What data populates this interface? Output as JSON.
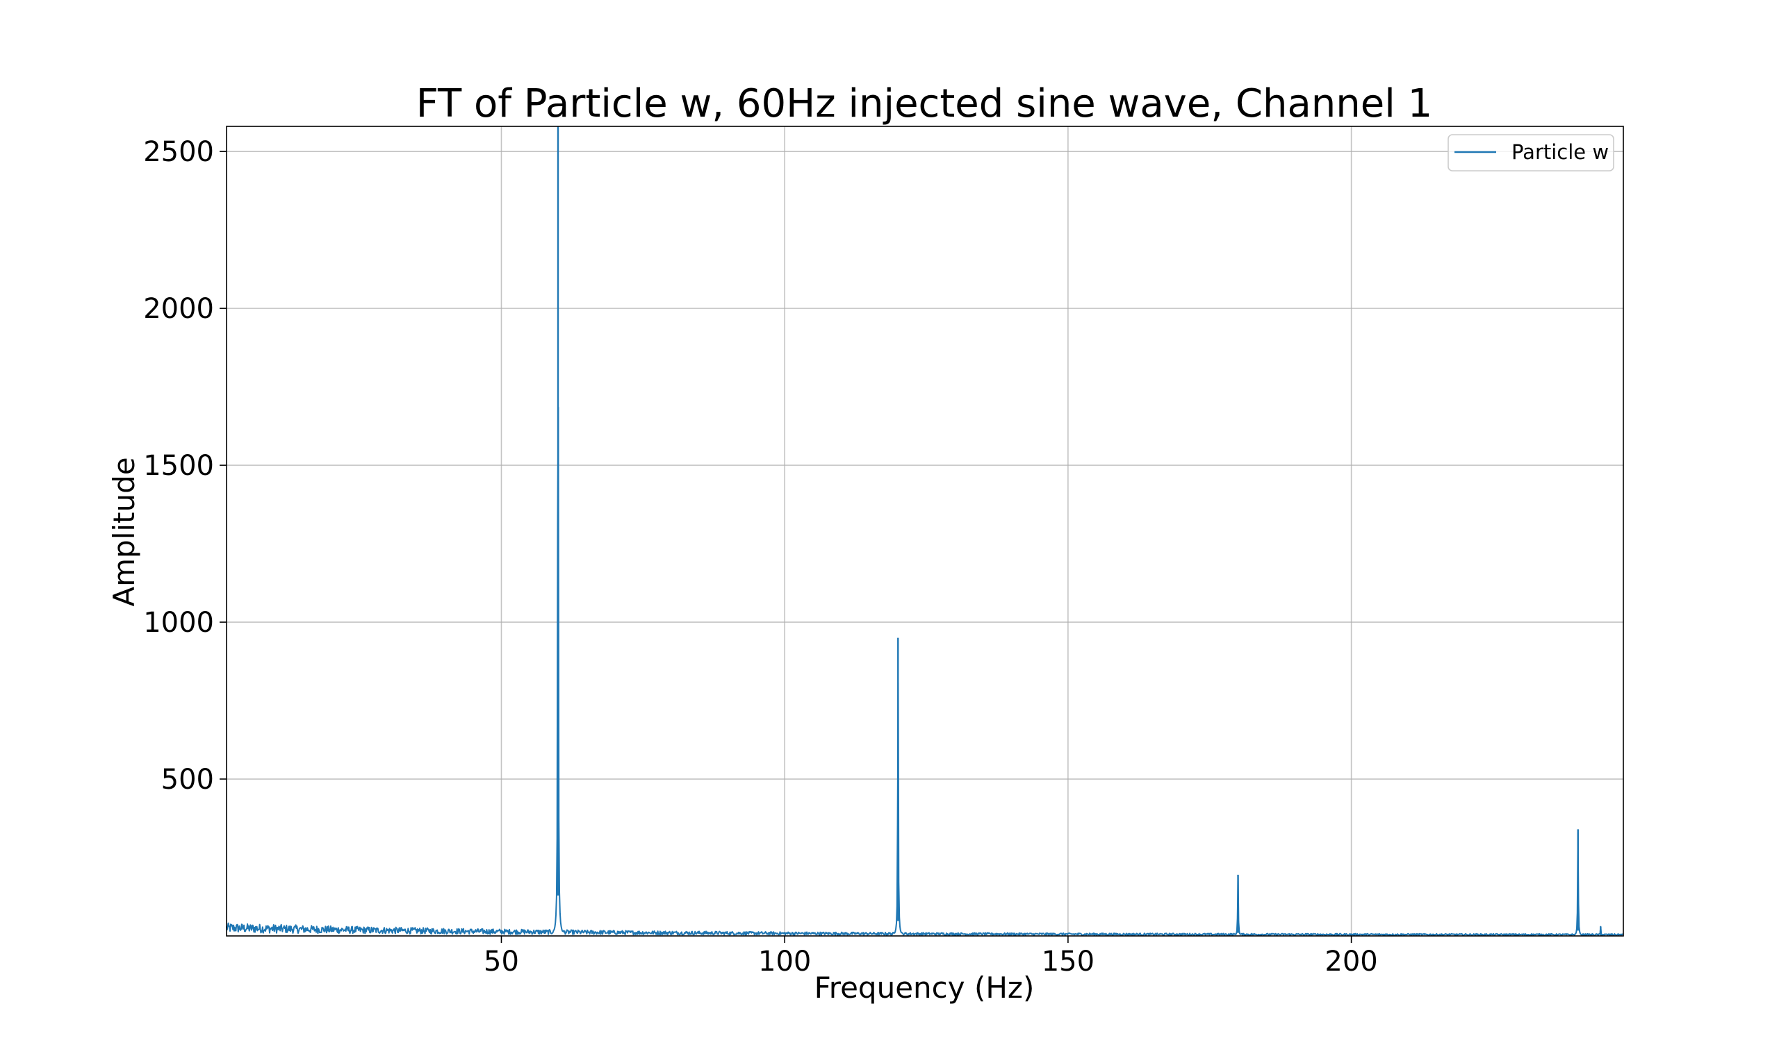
{
  "chart_data": {
    "type": "line",
    "title": "FT of Particle w, 60Hz injected sine wave, Channel 1",
    "xlabel": "Frequency (Hz)",
    "ylabel": "Amplitude",
    "xlim": [
      1.5,
      248
    ],
    "ylim": [
      0,
      2580
    ],
    "xticks": [
      50,
      100,
      150,
      200
    ],
    "xtick_labels": [
      "50",
      "100",
      "150",
      "200"
    ],
    "yticks": [
      500,
      1000,
      1500,
      2000,
      2500
    ],
    "ytick_labels": [
      "500",
      "1000",
      "1500",
      "2000",
      "2500"
    ],
    "grid": true,
    "legend_position": "upper right",
    "series": [
      {
        "name": "Particle w",
        "color": "#1f77b4",
        "noise_floor": {
          "x_start": 1.5,
          "x_end": 248,
          "amplitude_low_freq": 35,
          "amplitude_high_freq": 6
        },
        "peaks": [
          {
            "x": 60,
            "y": 2580
          },
          {
            "x": 120,
            "y": 950
          },
          {
            "x": 180,
            "y": 195
          },
          {
            "x": 240,
            "y": 340
          },
          {
            "x": 244,
            "y": 30
          }
        ]
      }
    ]
  }
}
